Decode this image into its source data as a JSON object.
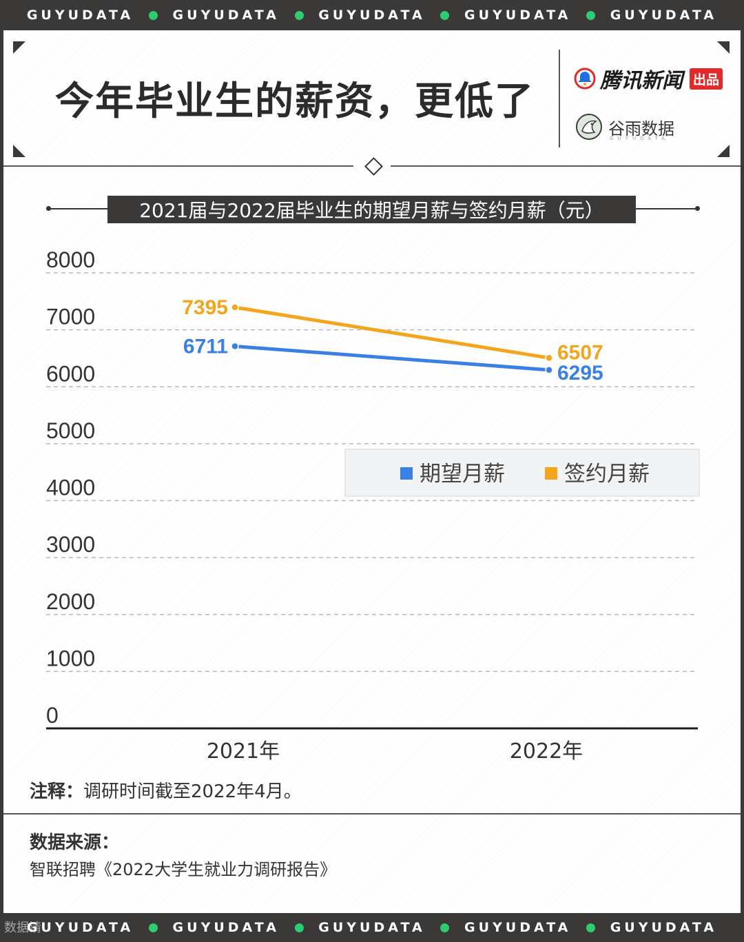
{
  "band_text": "GUYUDATA",
  "header": {
    "title": "今年毕业生的薪资，更低了",
    "brand_primary": "腾讯新闻",
    "brand_primary_tag": "出品",
    "brand_secondary": "谷雨数据",
    "brand_secondary_sub": "GUYUDATA"
  },
  "colors": {
    "expected": "#3a7fe3",
    "signed": "#f2a51d",
    "band": "#3a3938",
    "band_dot": "#2ecc71"
  },
  "chart_data": {
    "type": "line",
    "title": "2021届与2022届毕业生的期望月薪与签约月薪（元）",
    "categories": [
      "2021年",
      "2022年"
    ],
    "series": [
      {
        "name": "期望月薪",
        "values": [
          6711,
          6295
        ]
      },
      {
        "name": "签约月薪",
        "values": [
          7395,
          6507
        ]
      }
    ],
    "ylim": [
      0,
      8000
    ],
    "yticks": [
      0,
      1000,
      2000,
      3000,
      4000,
      5000,
      6000,
      7000,
      8000
    ],
    "grid": true,
    "legend": "center-right"
  },
  "footer": {
    "note_label": "注释：",
    "note_text": "调研时间截至2022年4月。",
    "source_label": "数据来源：",
    "source_text": "智联招聘《2022大学生就业力调研报告》"
  },
  "watermark": "数据请"
}
